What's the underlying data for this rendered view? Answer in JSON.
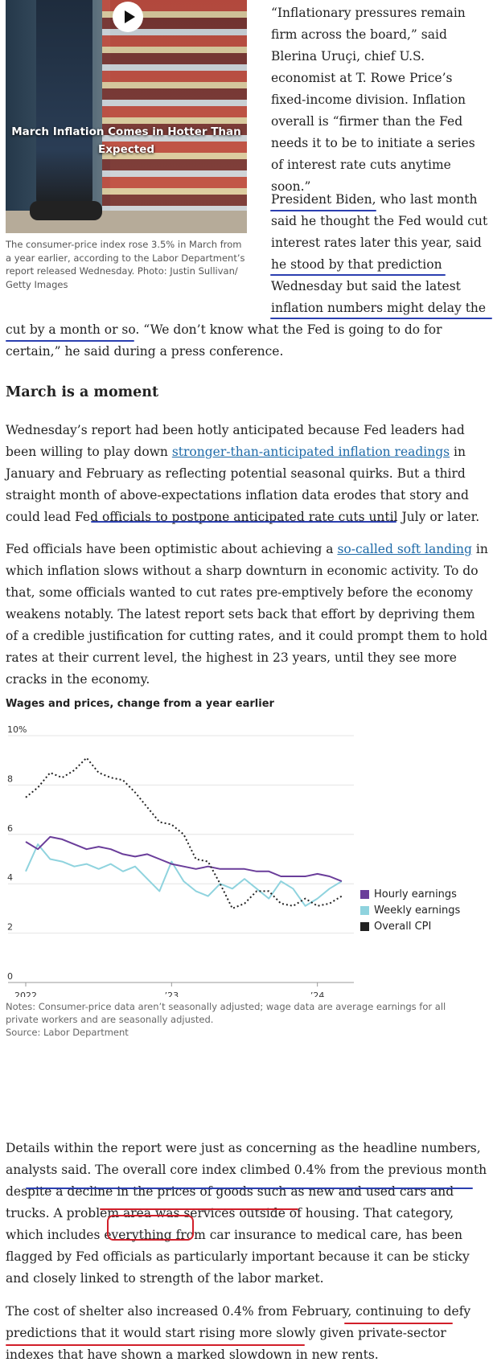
{
  "video": {
    "title": "March Inflation Comes in Hotter Than Expected",
    "caption": "The consumer-price index rose 3.5% in March from a year earlier, according to the Labor Department’s report released Wednesday. Photo: Justin Sullivan/ Getty Images"
  },
  "article": {
    "p1": "“Inflationary pressures remain firm across the board,” said Blerina Uruçi, chief U.S. economist at T. Rowe Price’s fixed-income division. Inflation overall is “firmer than the Fed needs it to be to initiate a series of interest rate cuts anytime soon.”",
    "p2_lines": [
      "President Biden, who last month",
      "said he thought the Fed would cut",
      "interest rates later this year, said",
      "he stood by that prediction",
      "Wednesday but said the latest",
      "inflation numbers might delay the"
    ],
    "p2_tail": "cut by a month or so. “We don’t know what the Fed is going to do for certain,” he said during a press conference.",
    "heading": "March is a moment",
    "p3_before_link": "Wednesday’s report had been hotly anticipated because Fed leaders had been willing to play down ",
    "p3_link": "stronger-than-anticipated inflation readings",
    "p3_after_link": " in January and February as reflecting potential seasonal quirks. But a third straight month of above-expectations inflation data erodes that story and could lead Fed officials to postpone anticipated rate cuts until July or later.",
    "p4_before_link": "Fed officials have been optimistic about achieving a ",
    "p4_link": "so-called soft landing",
    "p4_after_link": " in which inflation slows without a sharp downturn in economic activity. To do that, some officials wanted to cut rates pre-emptively before the economy weakens notably. The latest report sets back that effort by depriving them of a credible justification for cutting rates, and it could prompt them to hold rates at their current level, the highest in 23 years, until they see more cracks in the economy.",
    "p5": "Details within the report were just as concerning as the headline numbers, analysts said. The overall core index climbed 0.4% from the previous month despite a decline in the prices of goods such as new and used cars and trucks. A problem area was services outside of housing. That category, which includes everything from car insurance to medical care, has been flagged by Fed officials as particularly important because it can be sticky and closely linked to strength of the labor market.",
    "p6": "The cost of shelter also increased 0.4% from February, continuing to defy predictions that it would start rising more slowly given private-sector indexes that have shown a marked slowdown in new rents."
  },
  "chart_data": {
    "type": "line",
    "title": "Wages and prices, change from a year earlier",
    "y_ticks": [
      "10%",
      "8",
      "6",
      "4",
      "2",
      "0"
    ],
    "x_ticks": [
      "2022",
      "’23",
      "’24"
    ],
    "ylim": [
      0,
      10
    ],
    "x_range": [
      2022.0,
      2024.25
    ],
    "legend_position": "right",
    "series": [
      {
        "name": "Hourly earnings",
        "color": "#6a3d9a",
        "style": "solid",
        "x": [
          2022.0,
          2022.083,
          2022.167,
          2022.25,
          2022.333,
          2022.417,
          2022.5,
          2022.583,
          2022.667,
          2022.75,
          2022.833,
          2022.917,
          2023.0,
          2023.083,
          2023.167,
          2023.25,
          2023.333,
          2023.417,
          2023.5,
          2023.583,
          2023.667,
          2023.75,
          2023.833,
          2023.917,
          2024.0,
          2024.083,
          2024.167
        ],
        "values": [
          5.7,
          5.4,
          5.9,
          5.8,
          5.6,
          5.4,
          5.5,
          5.4,
          5.2,
          5.1,
          5.2,
          5.0,
          4.8,
          4.7,
          4.6,
          4.7,
          4.6,
          4.6,
          4.6,
          4.5,
          4.5,
          4.3,
          4.3,
          4.3,
          4.4,
          4.3,
          4.1
        ]
      },
      {
        "name": "Weekly earnings",
        "color": "#8fd3de",
        "style": "solid",
        "x": [
          2022.0,
          2022.083,
          2022.167,
          2022.25,
          2022.333,
          2022.417,
          2022.5,
          2022.583,
          2022.667,
          2022.75,
          2022.833,
          2022.917,
          2023.0,
          2023.083,
          2023.167,
          2023.25,
          2023.333,
          2023.417,
          2023.5,
          2023.583,
          2023.667,
          2023.75,
          2023.833,
          2023.917,
          2024.0,
          2024.083,
          2024.167
        ],
        "values": [
          4.5,
          5.6,
          5.0,
          4.9,
          4.7,
          4.8,
          4.6,
          4.8,
          4.5,
          4.7,
          4.2,
          3.7,
          4.9,
          4.1,
          3.7,
          3.5,
          4.0,
          3.8,
          4.2,
          3.8,
          3.4,
          4.1,
          3.8,
          3.1,
          3.4,
          3.8,
          4.1
        ]
      },
      {
        "name": "Overall CPI",
        "color": "#222222",
        "style": "dotted",
        "x": [
          2022.0,
          2022.083,
          2022.167,
          2022.25,
          2022.333,
          2022.417,
          2022.5,
          2022.583,
          2022.667,
          2022.75,
          2022.833,
          2022.917,
          2023.0,
          2023.083,
          2023.167,
          2023.25,
          2023.333,
          2023.417,
          2023.5,
          2023.583,
          2023.667,
          2023.75,
          2023.833,
          2023.917,
          2024.0,
          2024.083,
          2024.167
        ],
        "values": [
          7.5,
          7.9,
          8.5,
          8.3,
          8.6,
          9.1,
          8.5,
          8.3,
          8.2,
          7.7,
          7.1,
          6.5,
          6.4,
          6.0,
          5.0,
          4.9,
          4.0,
          3.0,
          3.2,
          3.7,
          3.7,
          3.2,
          3.1,
          3.4,
          3.1,
          3.2,
          3.5
        ]
      }
    ],
    "notes": "Notes: Consumer-price data aren’t seasonally adjusted; wage data are average earnings for all private workers and are seasonally adjusted.",
    "source": "Source: Labor Department"
  }
}
